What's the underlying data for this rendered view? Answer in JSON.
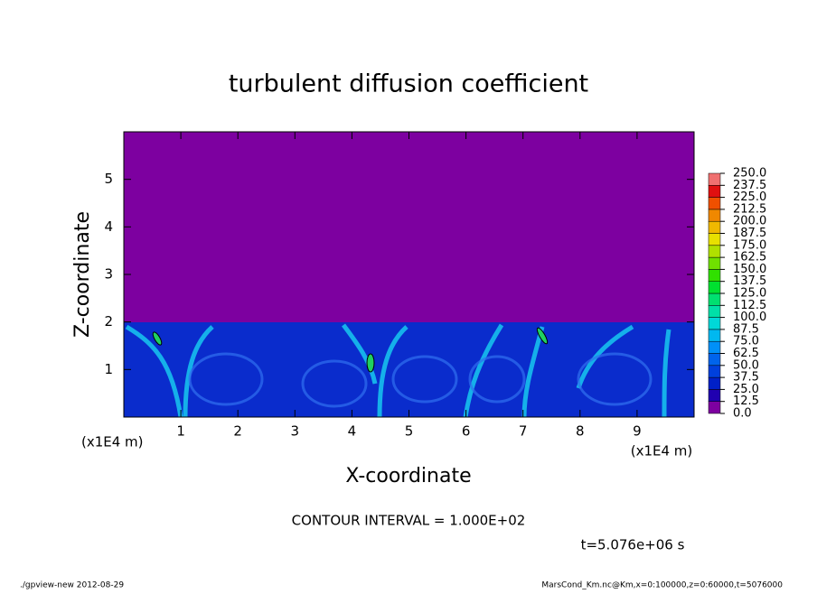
{
  "chart_data": {
    "type": "contour",
    "title": "turbulent diffusion coefficient",
    "xlabel": "X-coordinate",
    "ylabel": "Z-coordinate",
    "x_unit": "(x1E4 m)",
    "y_unit": "(x1E4 m)",
    "xlim": [
      0,
      10
    ],
    "ylim": [
      0,
      6
    ],
    "xticks": [
      1,
      2,
      3,
      4,
      5,
      6,
      7,
      8,
      9
    ],
    "yticks": [
      1,
      2,
      3,
      4,
      5
    ],
    "levels": [
      {
        "value": 0,
        "label": "0.0"
      },
      {
        "value": 12.5,
        "label": "12.5"
      },
      {
        "value": 25,
        "label": "25.0"
      },
      {
        "value": 37.5,
        "label": "37.5"
      },
      {
        "value": 50,
        "label": "50.0"
      },
      {
        "value": 62.5,
        "label": "62.5"
      },
      {
        "value": 75,
        "label": "75.0"
      },
      {
        "value": 87.5,
        "label": "87.5"
      },
      {
        "value": 100,
        "label": "100.0"
      },
      {
        "value": 112.5,
        "label": "112.5"
      },
      {
        "value": 125,
        "label": "125.0"
      },
      {
        "value": 137.5,
        "label": "137.5"
      },
      {
        "value": 150,
        "label": "150.0"
      },
      {
        "value": 162.5,
        "label": "162.5"
      },
      {
        "value": 175,
        "label": "175.0"
      },
      {
        "value": 187.5,
        "label": "187.5"
      },
      {
        "value": 200,
        "label": "200.0"
      },
      {
        "value": 212.5,
        "label": "212.5"
      },
      {
        "value": 225,
        "label": "225.0"
      },
      {
        "value": 237.5,
        "label": "237.5"
      },
      {
        "value": 250,
        "label": "250.0"
      }
    ],
    "colors": [
      "#7d00a0",
      "#2000b0",
      "#0020c8",
      "#0040dc",
      "#0064ec",
      "#0090f8",
      "#00b8f0",
      "#00d8d8",
      "#00e0a8",
      "#00e070",
      "#00e030",
      "#30e000",
      "#70e000",
      "#b0e000",
      "#e8e000",
      "#f0b800",
      "#f08800",
      "#f05000",
      "#e01010",
      "#f07070"
    ],
    "contour_interval": "CONTOUR INTERVAL = 1.000E+02",
    "time": "t=5.076e+06 s",
    "footer_left": "./gpview-new  2012-08-29",
    "footer_right": "MarsCond_Km.nc@Km,x=0:100000,z=0:60000,t=5076000"
  }
}
